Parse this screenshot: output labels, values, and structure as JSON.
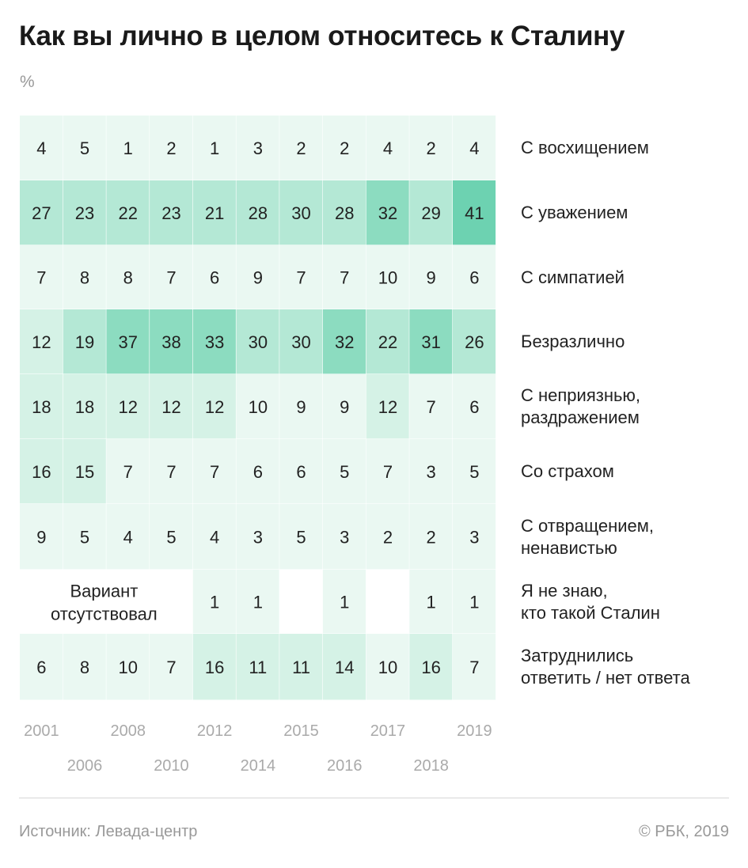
{
  "header": {
    "title": "Как вы лично в целом относитесь к Сталину",
    "unit": "%"
  },
  "footer": {
    "source": "Источник: Левада-центр",
    "copyright": "© РБК, 2019"
  },
  "colors": {
    "scale": [
      "#eaf8f2",
      "#d5f2e6",
      "#b4e8d5",
      "#8cdcc0",
      "#6dd2b1"
    ],
    "text": "#222222",
    "axis": "#aaaaaa"
  },
  "chart_data": {
    "type": "heatmap",
    "title": "Как вы лично в целом относитесь к Сталину",
    "unit": "%",
    "years": [
      "2001",
      "2006",
      "2008",
      "2010",
      "2012",
      "2014",
      "2015",
      "2016",
      "2017",
      "2018",
      "2019"
    ],
    "rows": [
      {
        "label": [
          "С восхищением"
        ],
        "values": [
          4,
          5,
          1,
          2,
          1,
          3,
          2,
          2,
          4,
          2,
          4
        ]
      },
      {
        "label": [
          "С уважением"
        ],
        "values": [
          27,
          23,
          22,
          23,
          21,
          28,
          30,
          28,
          32,
          29,
          41
        ]
      },
      {
        "label": [
          "С симпатией"
        ],
        "values": [
          7,
          8,
          8,
          7,
          6,
          9,
          7,
          7,
          10,
          9,
          6
        ]
      },
      {
        "label": [
          "Безразлично"
        ],
        "values": [
          12,
          19,
          37,
          38,
          33,
          30,
          30,
          32,
          22,
          31,
          26
        ]
      },
      {
        "label": [
          "С неприязнью,",
          "раздражением"
        ],
        "values": [
          18,
          18,
          12,
          12,
          12,
          10,
          9,
          9,
          12,
          7,
          6
        ]
      },
      {
        "label": [
          "Со страхом"
        ],
        "values": [
          16,
          15,
          7,
          7,
          7,
          6,
          6,
          5,
          7,
          3,
          5
        ]
      },
      {
        "label": [
          "С отвращением,",
          "ненавистью"
        ],
        "values": [
          9,
          5,
          4,
          5,
          4,
          3,
          5,
          3,
          2,
          2,
          3
        ]
      },
      {
        "label": [
          "Я не знаю,",
          "кто такой Сталин"
        ],
        "values": [
          null,
          null,
          null,
          null,
          1,
          1,
          null,
          1,
          null,
          1,
          1
        ]
      },
      {
        "label": [
          "Затруднились",
          "ответить / нет ответа"
        ],
        "values": [
          6,
          8,
          10,
          7,
          16,
          11,
          11,
          14,
          10,
          16,
          7
        ]
      }
    ],
    "annotation": [
      "Вариант",
      "отсутствовал"
    ]
  }
}
